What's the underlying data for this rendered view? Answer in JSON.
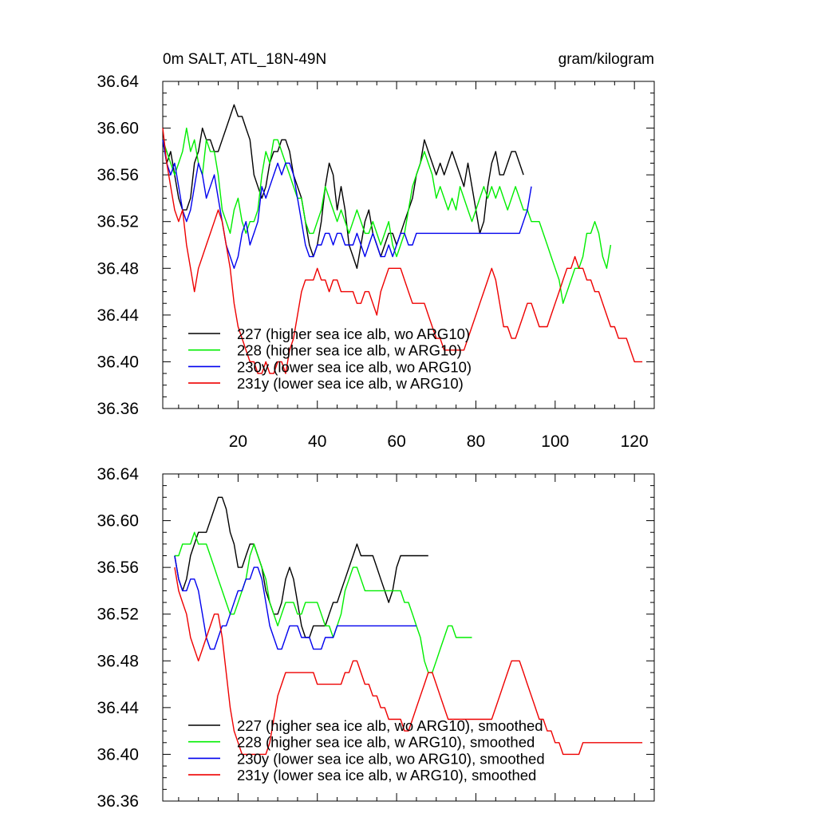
{
  "header": {
    "title": "0m SALT, ATL_18N-49N",
    "units": "gram/kilogram"
  },
  "colors": {
    "s227": "#000000",
    "s228": "#00ee00",
    "s230": "#0000ee",
    "s231": "#ee0000"
  },
  "chart_data": [
    {
      "type": "line",
      "title": "0m SALT, ATL_18N-49N",
      "units_label": "gram/kilogram",
      "xlim": [
        1,
        125
      ],
      "ylim": [
        36.36,
        36.64
      ],
      "xticks": [
        20,
        40,
        60,
        80,
        100,
        120
      ],
      "xtick_labels": [
        "20",
        "40",
        "60",
        "80",
        "100",
        "120"
      ],
      "yticks": [
        36.36,
        36.4,
        36.44,
        36.48,
        36.52,
        36.56,
        36.6,
        36.64
      ],
      "ytick_labels": [
        "36.36",
        "36.40",
        "36.44",
        "36.48",
        "36.52",
        "36.56",
        "36.60",
        "36.64"
      ],
      "legend_position": "bottom-left",
      "series": [
        {
          "name": "227 (higher sea ice alb, wo ARG10)",
          "color_key": "s227",
          "x_start": 1,
          "values": [
            36.59,
            36.57,
            36.58,
            36.56,
            36.54,
            36.53,
            36.53,
            36.54,
            36.57,
            36.58,
            36.6,
            36.59,
            36.59,
            36.58,
            36.58,
            36.59,
            36.6,
            36.61,
            36.62,
            36.61,
            36.61,
            36.6,
            36.59,
            36.56,
            36.55,
            36.54,
            36.55,
            36.57,
            36.58,
            36.58,
            36.59,
            36.59,
            36.58,
            36.56,
            36.55,
            36.54,
            36.52,
            36.5,
            36.49,
            36.5,
            36.52,
            36.55,
            36.57,
            36.56,
            36.53,
            36.55,
            36.53,
            36.5,
            36.49,
            36.48,
            36.5,
            36.52,
            36.53,
            36.51,
            36.5,
            36.49,
            36.5,
            36.51,
            36.51,
            36.5,
            36.51,
            36.52,
            36.53,
            36.54,
            36.56,
            36.57,
            36.59,
            36.58,
            36.57,
            36.56,
            36.57,
            36.56,
            36.57,
            36.58,
            36.57,
            36.56,
            36.55,
            36.57,
            36.55,
            36.53,
            36.51,
            36.52,
            36.55,
            36.57,
            36.58,
            36.56,
            36.56,
            36.57,
            36.58,
            36.58,
            36.57,
            36.56
          ]
        },
        {
          "name": "228 (higher sea ice alb, w ARG10)",
          "color_key": "s228",
          "x_start": 1,
          "values": [
            36.59,
            36.58,
            36.57,
            36.56,
            36.57,
            36.58,
            36.6,
            36.58,
            36.59,
            36.57,
            36.56,
            36.59,
            36.58,
            36.58,
            36.56,
            36.53,
            36.52,
            36.51,
            36.53,
            36.54,
            36.52,
            36.51,
            36.52,
            36.52,
            36.53,
            36.56,
            36.58,
            36.57,
            36.59,
            36.59,
            36.58,
            36.57,
            36.56,
            36.55,
            36.54,
            36.54,
            36.52,
            36.51,
            36.51,
            36.52,
            36.53,
            36.55,
            36.54,
            36.53,
            36.52,
            36.53,
            36.52,
            36.51,
            36.52,
            36.53,
            36.52,
            36.51,
            36.51,
            36.52,
            36.51,
            36.5,
            36.51,
            36.52,
            36.5,
            36.49,
            36.5,
            36.51,
            36.53,
            36.55,
            36.56,
            36.57,
            36.58,
            36.57,
            36.56,
            36.54,
            36.55,
            36.54,
            36.53,
            36.54,
            36.53,
            36.55,
            36.54,
            36.53,
            36.52,
            36.53,
            36.54,
            36.55,
            36.54,
            36.55,
            36.54,
            36.55,
            36.54,
            36.53,
            36.54,
            36.55,
            36.54,
            36.53,
            36.53,
            36.52,
            36.52,
            36.52,
            36.51,
            36.5,
            36.49,
            36.48,
            36.47,
            36.45,
            36.46,
            36.47,
            36.48,
            36.48,
            36.49,
            36.51,
            36.51,
            36.52,
            36.51,
            36.49,
            36.48,
            36.5
          ]
        },
        {
          "name": "230y (lower sea ice alb, wo ARG10)",
          "color_key": "s230",
          "x_start": 1,
          "values": [
            36.59,
            36.57,
            36.56,
            36.57,
            36.55,
            36.53,
            36.52,
            36.53,
            36.55,
            36.57,
            36.56,
            36.54,
            36.55,
            36.56,
            36.54,
            36.52,
            36.5,
            36.49,
            36.48,
            36.49,
            36.51,
            36.52,
            36.5,
            36.51,
            36.52,
            36.55,
            36.54,
            36.55,
            36.56,
            36.57,
            36.56,
            36.57,
            36.57,
            36.56,
            36.54,
            36.52,
            36.5,
            36.49,
            36.49,
            36.5,
            36.5,
            36.51,
            36.51,
            36.5,
            36.51,
            36.51,
            36.5,
            36.5,
            36.5,
            36.51,
            36.5,
            36.49,
            36.5,
            36.51,
            36.5,
            36.49,
            36.49,
            36.5,
            36.49,
            36.5,
            36.51,
            36.51,
            36.5,
            36.5,
            36.51,
            36.51,
            36.51,
            36.51,
            36.51,
            36.51,
            36.51,
            36.51,
            36.51,
            36.51,
            36.51,
            36.51,
            36.51,
            36.51,
            36.51,
            36.51,
            36.51,
            36.51,
            36.51,
            36.51,
            36.51,
            36.51,
            36.51,
            36.51,
            36.51,
            36.51,
            36.51,
            36.52,
            36.53,
            36.55
          ]
        },
        {
          "name": "231y (lower sea ice alb, w ARG10)",
          "color_key": "s231",
          "x_start": 1,
          "values": [
            36.6,
            36.57,
            36.55,
            36.53,
            36.52,
            36.53,
            36.5,
            36.48,
            36.46,
            36.48,
            36.49,
            36.5,
            36.51,
            36.52,
            36.53,
            36.52,
            36.5,
            36.48,
            36.45,
            36.43,
            36.42,
            36.41,
            36.4,
            36.4,
            36.39,
            36.39,
            36.4,
            36.39,
            36.39,
            36.4,
            36.4,
            36.39,
            36.41,
            36.42,
            36.44,
            36.46,
            36.47,
            36.47,
            36.47,
            36.48,
            36.47,
            36.47,
            36.46,
            36.47,
            36.47,
            36.46,
            36.46,
            36.46,
            36.46,
            36.45,
            36.45,
            36.46,
            36.46,
            36.45,
            36.44,
            36.46,
            36.47,
            36.48,
            36.48,
            36.48,
            36.48,
            36.47,
            36.46,
            36.45,
            36.45,
            36.45,
            36.45,
            36.44,
            36.43,
            36.42,
            36.42,
            36.41,
            36.41,
            36.41,
            36.41,
            36.41,
            36.41,
            36.42,
            36.43,
            36.44,
            36.45,
            36.46,
            36.47,
            36.48,
            36.47,
            36.45,
            36.43,
            36.43,
            36.42,
            36.42,
            36.43,
            36.44,
            36.45,
            36.45,
            36.44,
            36.43,
            36.43,
            36.43,
            36.44,
            36.45,
            36.46,
            36.47,
            36.48,
            36.48,
            36.49,
            36.48,
            36.48,
            36.47,
            36.47,
            36.46,
            36.46,
            36.45,
            36.44,
            36.43,
            36.43,
            36.42,
            36.42,
            36.42,
            36.41,
            36.4,
            36.4,
            36.4
          ]
        }
      ]
    },
    {
      "type": "line",
      "title": "",
      "xlim": [
        1,
        125
      ],
      "ylim": [
        36.36,
        36.64
      ],
      "yticks": [
        36.36,
        36.4,
        36.44,
        36.48,
        36.52,
        36.56,
        36.6,
        36.64
      ],
      "ytick_labels": [
        "36.36",
        "36.40",
        "36.44",
        "36.48",
        "36.52",
        "36.56",
        "36.60",
        "36.64"
      ],
      "legend_position": "bottom-left",
      "series": [
        {
          "name": "227 (higher sea ice alb, wo ARG10), smoothed",
          "color_key": "s227",
          "x_start": 4,
          "values": [
            36.57,
            36.55,
            36.54,
            36.55,
            36.57,
            36.58,
            36.59,
            36.59,
            36.59,
            36.6,
            36.61,
            36.62,
            36.62,
            36.61,
            36.59,
            36.58,
            36.56,
            36.56,
            36.57,
            36.58,
            36.58,
            36.57,
            36.56,
            36.54,
            36.53,
            36.52,
            36.52,
            36.53,
            36.55,
            36.56,
            36.55,
            36.53,
            36.51,
            36.5,
            36.5,
            36.51,
            36.51,
            36.51,
            36.51,
            36.52,
            36.53,
            36.53,
            36.54,
            36.55,
            36.56,
            36.57,
            36.58,
            36.57,
            36.57,
            36.57,
            36.57,
            36.56,
            36.55,
            36.54,
            36.53,
            36.54,
            36.56,
            36.57,
            36.57,
            36.57,
            36.57,
            36.57,
            36.57,
            36.57,
            36.57
          ]
        },
        {
          "name": "228 (higher sea ice alb, w ARG10), smoothed",
          "color_key": "s228",
          "x_start": 4,
          "values": [
            36.57,
            36.57,
            36.58,
            36.58,
            36.58,
            36.59,
            36.58,
            36.58,
            36.58,
            36.57,
            36.56,
            36.55,
            36.54,
            36.53,
            36.52,
            36.52,
            36.53,
            36.54,
            36.55,
            36.57,
            36.58,
            36.57,
            36.56,
            36.55,
            36.53,
            36.52,
            36.51,
            36.52,
            36.53,
            36.53,
            36.53,
            36.52,
            36.52,
            36.53,
            36.53,
            36.53,
            36.53,
            36.52,
            36.51,
            36.51,
            36.5,
            36.51,
            36.52,
            36.54,
            36.55,
            36.56,
            36.56,
            36.55,
            36.54,
            36.54,
            36.54,
            36.54,
            36.54,
            36.54,
            36.54,
            36.54,
            36.54,
            36.54,
            36.53,
            36.53,
            36.52,
            36.51,
            36.5,
            36.48,
            36.47,
            36.47,
            36.48,
            36.49,
            36.5,
            36.51,
            36.51,
            36.5,
            36.5,
            36.5,
            36.5,
            36.5
          ]
        },
        {
          "name": "230y (lower sea ice alb, wo ARG10), smoothed",
          "color_key": "s230",
          "x_start": 4,
          "values": [
            36.57,
            36.55,
            36.54,
            36.54,
            36.55,
            36.55,
            36.54,
            36.52,
            36.5,
            36.49,
            36.49,
            36.5,
            36.51,
            36.51,
            36.52,
            36.53,
            36.54,
            36.54,
            36.55,
            36.55,
            36.56,
            36.56,
            36.55,
            36.53,
            36.51,
            36.5,
            36.49,
            36.49,
            36.5,
            36.51,
            36.51,
            36.51,
            36.5,
            36.5,
            36.5,
            36.49,
            36.49,
            36.49,
            36.5,
            36.5,
            36.5,
            36.51,
            36.51,
            36.51,
            36.51,
            36.51,
            36.51,
            36.51,
            36.51,
            36.51,
            36.51,
            36.51,
            36.51,
            36.51,
            36.51,
            36.51,
            36.51,
            36.51,
            36.51,
            36.51,
            36.51,
            36.51
          ]
        },
        {
          "name": "231y (lower sea ice alb, w ARG10), smoothed",
          "color_key": "s231",
          "x_start": 4,
          "values": [
            36.56,
            36.54,
            36.53,
            36.52,
            36.5,
            36.49,
            36.48,
            36.49,
            36.5,
            36.51,
            36.52,
            36.52,
            36.5,
            36.47,
            36.44,
            36.42,
            36.41,
            36.4,
            36.4,
            36.4,
            36.4,
            36.4,
            36.4,
            36.4,
            36.41,
            36.43,
            36.45,
            36.46,
            36.47,
            36.47,
            36.47,
            36.47,
            36.47,
            36.47,
            36.47,
            36.47,
            36.46,
            36.46,
            36.46,
            36.46,
            36.46,
            36.46,
            36.46,
            36.47,
            36.47,
            36.48,
            36.48,
            36.47,
            36.46,
            36.46,
            36.45,
            36.45,
            36.44,
            36.44,
            36.43,
            36.43,
            36.43,
            36.43,
            36.42,
            36.42,
            36.43,
            36.44,
            36.45,
            36.46,
            36.47,
            36.47,
            36.46,
            36.45,
            36.44,
            36.43,
            36.43,
            36.43,
            36.43,
            36.43,
            36.43,
            36.43,
            36.43,
            36.43,
            36.43,
            36.43,
            36.43,
            36.44,
            36.45,
            36.46,
            36.47,
            36.48,
            36.48,
            36.48,
            36.47,
            36.46,
            36.45,
            36.44,
            36.43,
            36.43,
            36.42,
            36.42,
            36.41,
            36.41,
            36.4,
            36.4,
            36.4,
            36.4,
            36.4,
            36.41,
            36.41,
            36.41,
            36.41,
            36.41,
            36.41,
            36.41,
            36.41,
            36.41,
            36.41,
            36.41,
            36.41,
            36.41,
            36.41,
            36.41,
            36.41
          ]
        }
      ]
    }
  ]
}
